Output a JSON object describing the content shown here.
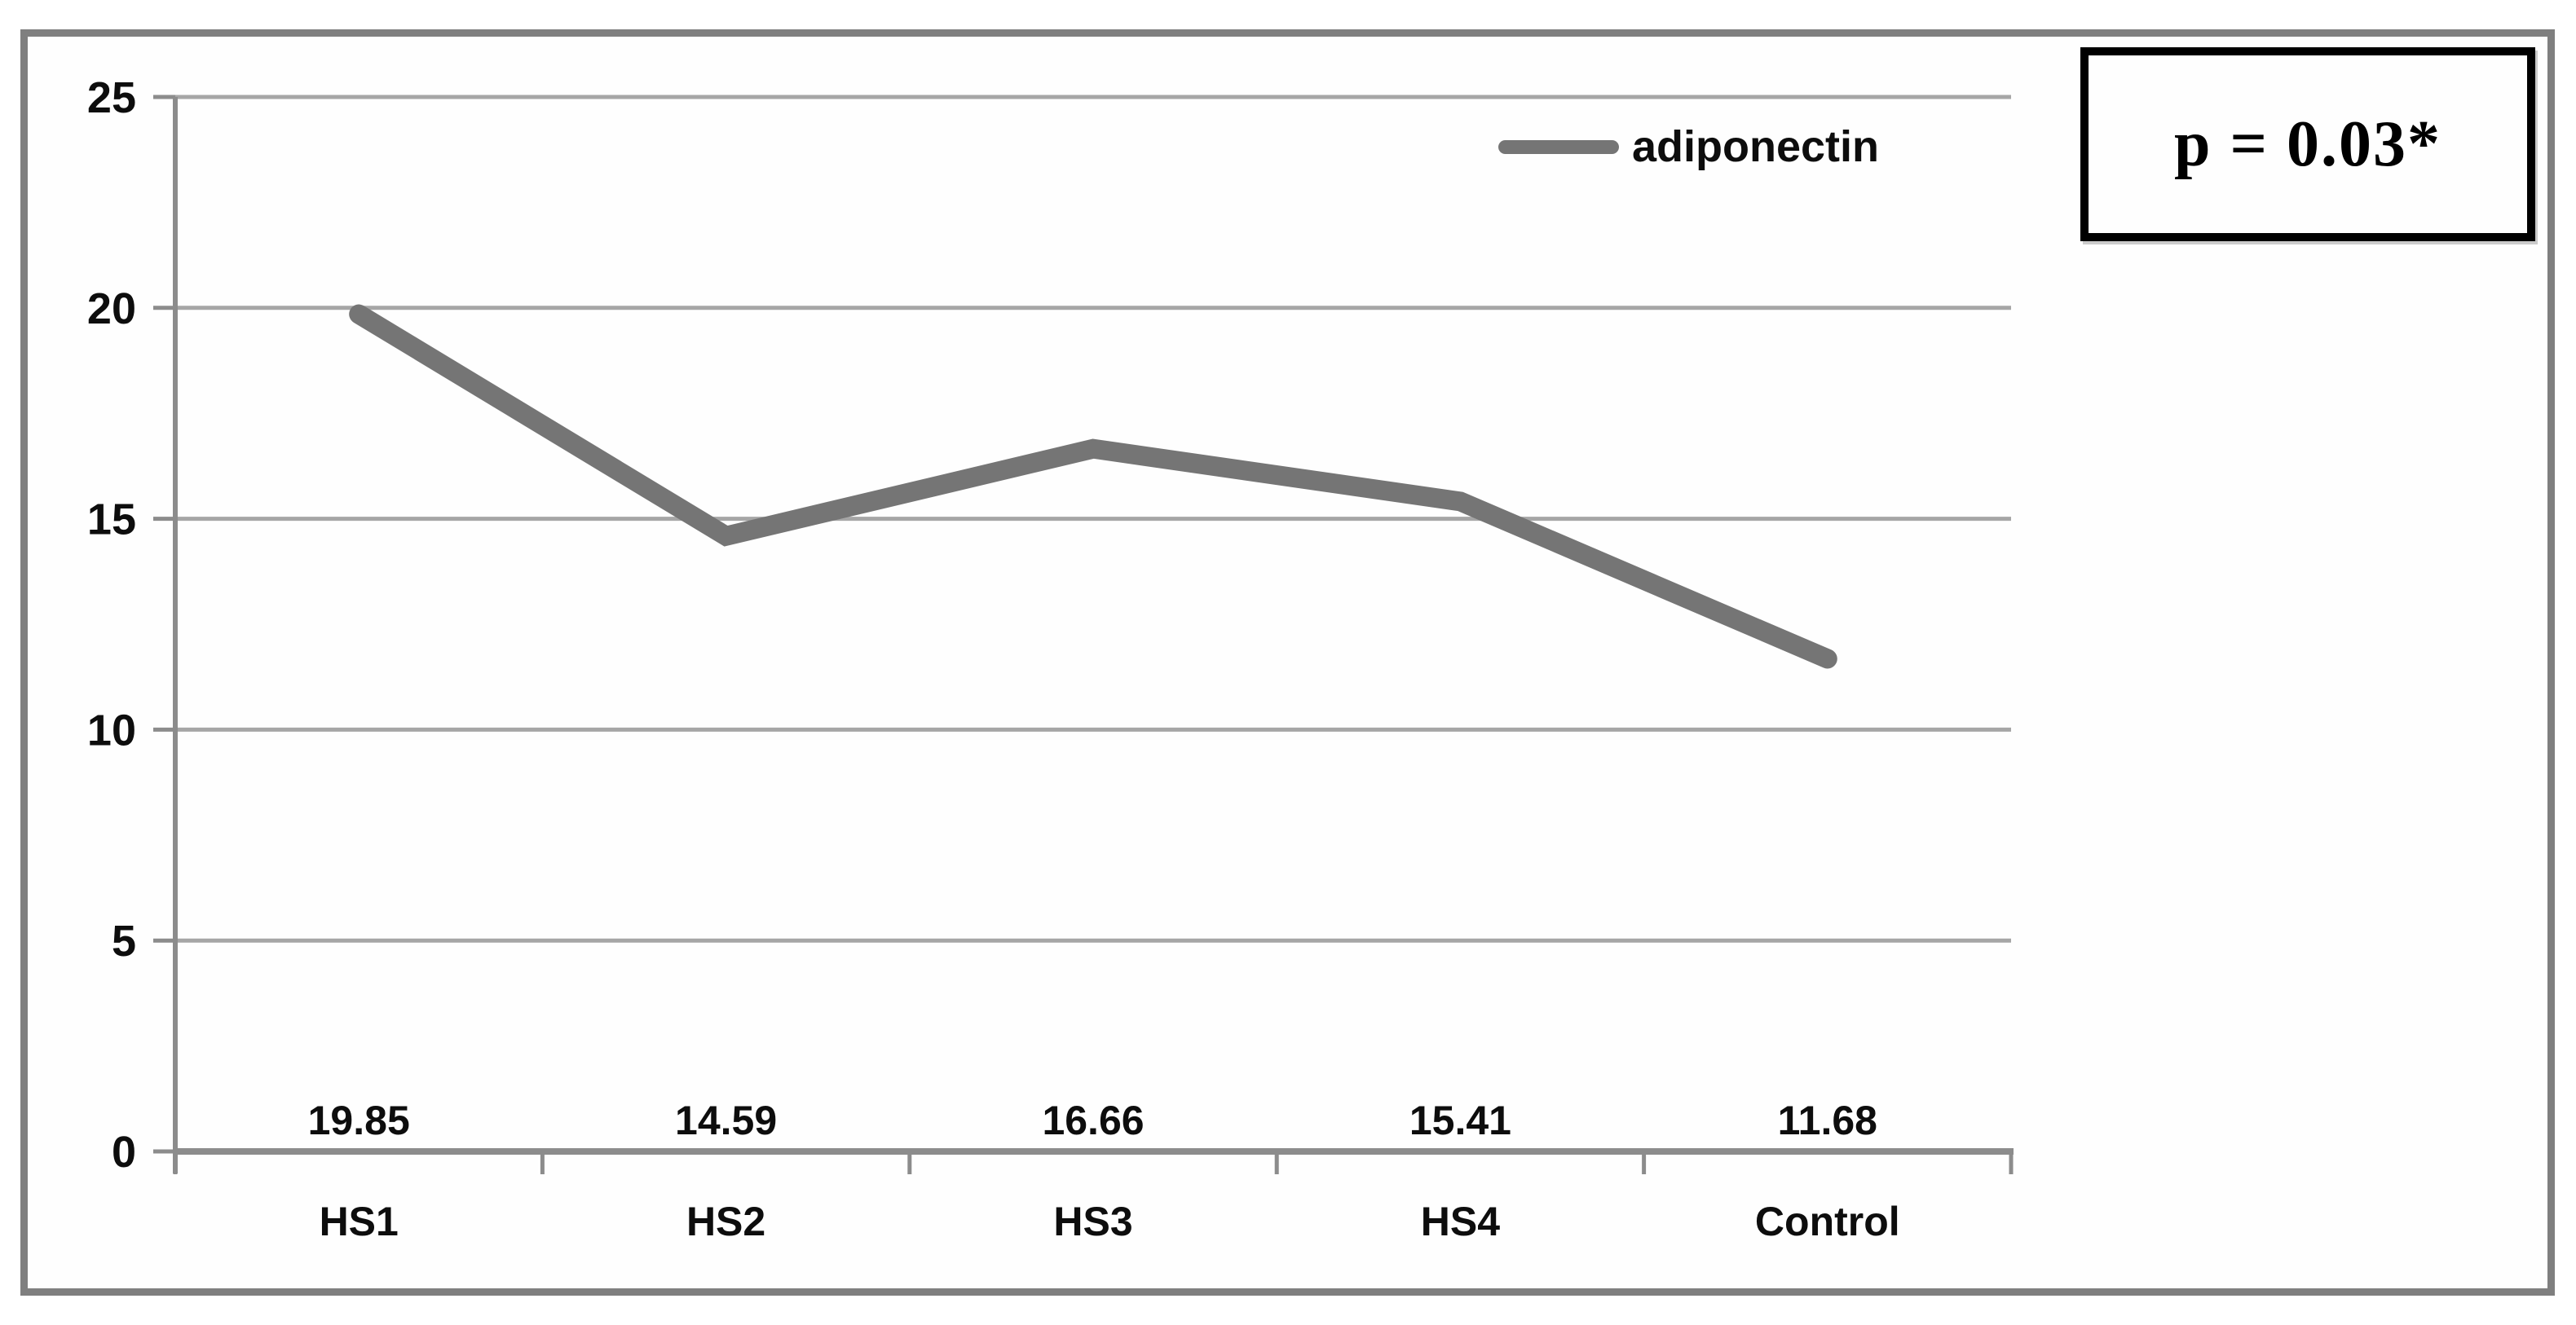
{
  "chart_data": {
    "type": "line",
    "categories": [
      "HS1",
      "HS2",
      "HS3",
      "HS4",
      "Control"
    ],
    "series": [
      {
        "name": "adiponectin",
        "values": [
          19.85,
          14.59,
          16.66,
          15.41,
          11.68
        ]
      }
    ],
    "data_labels": [
      "19.85",
      "14.59",
      "16.66",
      "15.41",
      "11.68"
    ],
    "ylim": [
      0,
      25
    ],
    "yticks": [
      0,
      5,
      10,
      15,
      20,
      25
    ],
    "xlabel": "",
    "ylabel": "",
    "title": "",
    "grid": "horizontal",
    "legend_position": "inside-top-right",
    "annotation": "p = 0.03*",
    "line_color": "#757575",
    "gridline_color": "#a6a6a6",
    "axis_color": "#8c8c8c",
    "border_color": "#7f7f7f",
    "annotation_border_color": "#000000",
    "text_color": "#0d0d0d"
  },
  "legend": {
    "label": "adiponectin"
  },
  "annotation_box": {
    "text": "p = 0.03*"
  }
}
